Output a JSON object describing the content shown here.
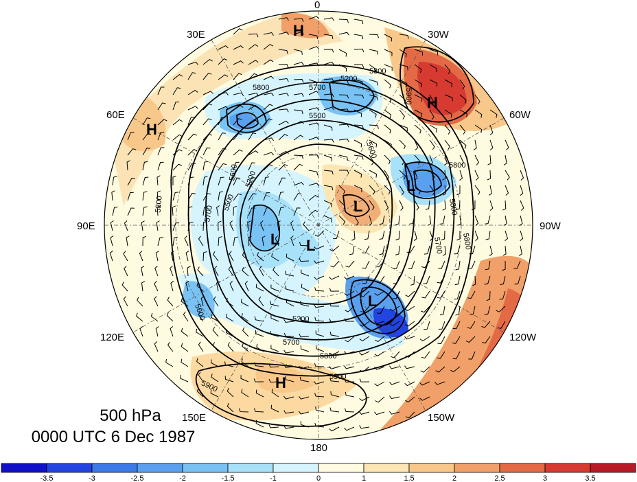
{
  "map": {
    "projection": "north-polar-stereographic",
    "longitude_labels": [
      {
        "text": "0"
      },
      {
        "text": "30W"
      },
      {
        "text": "60W"
      },
      {
        "text": "90W"
      },
      {
        "text": "120W"
      },
      {
        "text": "150W"
      },
      {
        "text": "180"
      },
      {
        "text": "150E"
      },
      {
        "text": "120E"
      },
      {
        "text": "90E"
      },
      {
        "text": "60E"
      },
      {
        "text": "30E"
      }
    ],
    "height_contours_m": [
      {
        "text": "5800"
      },
      {
        "text": "5700"
      },
      {
        "text": "5600"
      },
      {
        "text": "5500"
      },
      {
        "text": "5200"
      },
      {
        "text": "5900"
      },
      {
        "text": "5300"
      },
      {
        "text": "5400"
      }
    ],
    "centers": [
      {
        "type": "H"
      },
      {
        "type": "H"
      },
      {
        "type": "H"
      },
      {
        "type": "H"
      },
      {
        "type": "L"
      },
      {
        "type": "L"
      },
      {
        "type": "L"
      },
      {
        "type": "L"
      },
      {
        "type": "L"
      }
    ],
    "shading_colors": {
      "strong_negative": "#1a1ad2",
      "negative": "#5aa0ee",
      "weak_negative": "#c7ecfb",
      "neutral": "#fffbe0",
      "weak_positive": "#fbd9a0",
      "positive": "#ef8a5a",
      "strong_positive": "#d8262a"
    }
  },
  "title": {
    "level": "500 hPa",
    "datetime": "0000 UTC 6 Dec 1987"
  },
  "colorbar": {
    "ticks": [
      "-3.5",
      "-3",
      "-2.5",
      "-2",
      "-1.5",
      "-1",
      "0",
      "1",
      "1.5",
      "2",
      "2.5",
      "3",
      "3.5"
    ],
    "colors": [
      "#1010c8",
      "#2244e0",
      "#3c7ae8",
      "#5aa0ee",
      "#78c2f4",
      "#a8e2fa",
      "#d6f4fd",
      "#fffbe0",
      "#fbe6b4",
      "#f8c88a",
      "#f0a068",
      "#e46a46",
      "#d63a30",
      "#b81a26"
    ]
  }
}
